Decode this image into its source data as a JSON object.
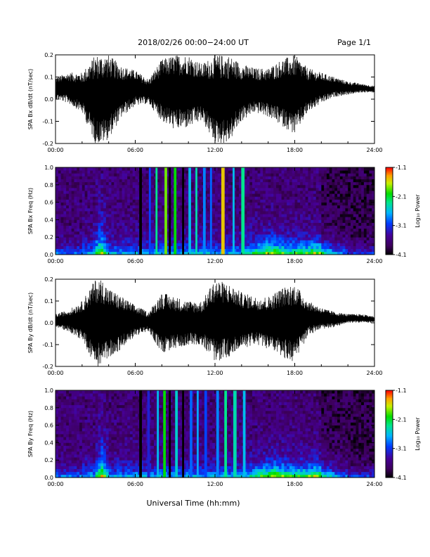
{
  "header": {
    "date_range": "2018/02/26  00:00−24:00 UT",
    "page": "Page 1/1"
  },
  "footer": {
    "xlabel": "Universal Time (hh:mm)"
  },
  "colors": {
    "trace": "#000000",
    "background": "#ffffff"
  },
  "colorbar": {
    "ticks": [
      "-1.1",
      "-2.1",
      "-3.1",
      "-4.1"
    ],
    "label": "Log₁₀ Power",
    "range": [
      -4.1,
      -1.1
    ]
  },
  "chart_data": [
    {
      "type": "line",
      "ylabel": "SPA Bx dB/dt (nT/sec)",
      "xlim": [
        0,
        24
      ],
      "ylim": [
        -0.2,
        0.2
      ],
      "x_ticks": [
        "00:00",
        "06:00",
        "12:00",
        "18:00",
        "24:00"
      ],
      "y_ticks": [
        "-0.2",
        "-0.1",
        "0.0",
        "0.1",
        "0.2"
      ],
      "envelope": {
        "x_hours": [
          0,
          1,
          2,
          3,
          3.5,
          4,
          5,
          6,
          7,
          8,
          9,
          10,
          11,
          12,
          13,
          14,
          15,
          16,
          17,
          18,
          19,
          20,
          21,
          22,
          23,
          24
        ],
        "y_max": [
          0.1,
          0.12,
          0.12,
          0.2,
          0.2,
          0.2,
          0.15,
          0.13,
          0.09,
          0.18,
          0.2,
          0.2,
          0.16,
          0.2,
          0.2,
          0.16,
          0.14,
          0.14,
          0.18,
          0.2,
          0.14,
          0.12,
          0.1,
          0.08,
          0.07,
          0.06
        ],
        "y_min": [
          0.0,
          -0.02,
          -0.06,
          -0.2,
          -0.2,
          -0.18,
          -0.08,
          -0.03,
          -0.02,
          -0.1,
          -0.14,
          -0.13,
          -0.1,
          -0.2,
          -0.2,
          -0.1,
          -0.06,
          -0.08,
          -0.12,
          -0.16,
          -0.06,
          -0.02,
          0.01,
          0.02,
          0.03,
          0.03
        ]
      }
    },
    {
      "type": "heatmap",
      "ylabel": "SPA Bx Freq (Hz)",
      "xlim": [
        0,
        24
      ],
      "ylim": [
        0.0,
        1.0
      ],
      "x_ticks": [
        "00:00",
        "06:00",
        "12:00",
        "18:00",
        "24:00"
      ],
      "y_ticks": [
        "0.0",
        "0.2",
        "0.4",
        "0.6",
        "0.8",
        "1.0"
      ],
      "value_range": [
        -4.1,
        -1.1
      ],
      "bands": [
        {
          "t": 6.4,
          "w": 0.2,
          "v": -4.1
        },
        {
          "t": 7.1,
          "w": 0.15,
          "v": -3.0
        },
        {
          "t": 7.6,
          "w": 0.15,
          "v": -2.3
        },
        {
          "t": 8.3,
          "w": 0.2,
          "v": -1.8
        },
        {
          "t": 8.6,
          "w": 0.15,
          "v": -4.1
        },
        {
          "t": 9.0,
          "w": 0.2,
          "v": -2.0
        },
        {
          "t": 9.6,
          "w": 0.15,
          "v": -4.1
        },
        {
          "t": 10.1,
          "w": 0.2,
          "v": -2.6
        },
        {
          "t": 10.6,
          "w": 0.15,
          "v": -2.4
        },
        {
          "t": 11.2,
          "w": 0.2,
          "v": -2.8
        },
        {
          "t": 11.7,
          "w": 0.15,
          "v": -2.9
        },
        {
          "t": 12.6,
          "w": 0.25,
          "v": -1.5
        },
        {
          "t": 13.4,
          "w": 0.15,
          "v": -2.6
        },
        {
          "t": 14.1,
          "w": 0.25,
          "v": -2.3
        }
      ],
      "bursts": [
        {
          "t": 3.4,
          "w": 0.6,
          "f": 0.3,
          "v": -2.6
        },
        {
          "t": 16.3,
          "w": 2.5,
          "f": 0.15,
          "v": -3.1
        },
        {
          "t": 19.5,
          "w": 2.0,
          "f": 0.12,
          "v": -3.3
        }
      ]
    },
    {
      "type": "line",
      "ylabel": "SPA By dB/dt (nT/sec)",
      "xlim": [
        0,
        24
      ],
      "ylim": [
        -0.2,
        0.2
      ],
      "x_ticks": [
        "00:00",
        "06:00",
        "12:00",
        "18:00",
        "24:00"
      ],
      "y_ticks": [
        "-0.2",
        "-0.1",
        "0.0",
        "0.1",
        "0.2"
      ],
      "envelope": {
        "x_hours": [
          0,
          1,
          2,
          3,
          3.5,
          4,
          5,
          6,
          7,
          8,
          9,
          10,
          11,
          12,
          13,
          14,
          15,
          16,
          17,
          18,
          19,
          20,
          21,
          22,
          23,
          24
        ],
        "y_max": [
          0.04,
          0.06,
          0.1,
          0.2,
          0.2,
          0.16,
          0.12,
          0.08,
          0.05,
          0.14,
          0.12,
          0.1,
          0.1,
          0.2,
          0.18,
          0.14,
          0.12,
          0.12,
          0.16,
          0.18,
          0.1,
          0.07,
          0.05,
          0.04,
          0.04,
          0.03
        ],
        "y_min": [
          -0.02,
          -0.04,
          -0.08,
          -0.2,
          -0.2,
          -0.16,
          -0.12,
          -0.06,
          -0.04,
          -0.14,
          -0.12,
          -0.1,
          -0.1,
          -0.18,
          -0.16,
          -0.12,
          -0.1,
          -0.12,
          -0.16,
          -0.18,
          -0.06,
          -0.03,
          -0.02,
          0.0,
          0.0,
          0.0
        ]
      }
    },
    {
      "type": "heatmap",
      "ylabel": "SPA By Freq (Hz)",
      "xlim": [
        0,
        24
      ],
      "ylim": [
        0.0,
        1.0
      ],
      "x_ticks": [
        "00:00",
        "06:00",
        "12:00",
        "18:00",
        "24:00"
      ],
      "y_ticks": [
        "0.0",
        "0.2",
        "0.4",
        "0.6",
        "0.8",
        "1.0"
      ],
      "value_range": [
        -4.1,
        -1.1
      ],
      "bands": [
        {
          "t": 6.4,
          "w": 0.2,
          "v": -4.1
        },
        {
          "t": 7.0,
          "w": 0.2,
          "v": -3.2
        },
        {
          "t": 7.7,
          "w": 0.15,
          "v": -2.6
        },
        {
          "t": 8.2,
          "w": 0.2,
          "v": -2.0
        },
        {
          "t": 8.6,
          "w": 0.15,
          "v": -4.1
        },
        {
          "t": 9.1,
          "w": 0.2,
          "v": -2.5
        },
        {
          "t": 9.6,
          "w": 0.15,
          "v": -4.1
        },
        {
          "t": 10.2,
          "w": 0.2,
          "v": -2.9
        },
        {
          "t": 10.7,
          "w": 0.15,
          "v": -2.7
        },
        {
          "t": 11.3,
          "w": 0.2,
          "v": -3.0
        },
        {
          "t": 12.2,
          "w": 0.2,
          "v": -2.8
        },
        {
          "t": 12.8,
          "w": 0.2,
          "v": -2.3
        },
        {
          "t": 13.5,
          "w": 0.25,
          "v": -2.4
        },
        {
          "t": 14.2,
          "w": 0.2,
          "v": -2.6
        }
      ],
      "bursts": [
        {
          "t": 3.5,
          "w": 0.6,
          "f": 0.3,
          "v": -2.5
        },
        {
          "t": 16.5,
          "w": 2.5,
          "f": 0.15,
          "v": -3.0
        },
        {
          "t": 19.5,
          "w": 2.0,
          "f": 0.12,
          "v": -3.2
        }
      ]
    }
  ]
}
